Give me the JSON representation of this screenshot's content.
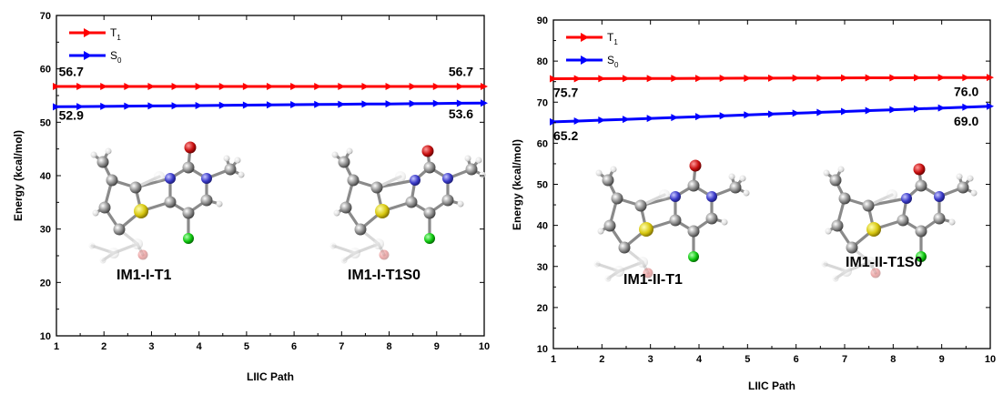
{
  "chart_data": [
    {
      "type": "line",
      "xlabel": "LIIC Path",
      "ylabel": "Energy (kcal/mol)",
      "xlim": [
        1,
        10
      ],
      "ylim": [
        10,
        70
      ],
      "x_ticks": [
        "1",
        "2",
        "3",
        "4",
        "5",
        "6",
        "7",
        "8",
        "9",
        "10"
      ],
      "y_ticks": [
        "10",
        "20",
        "30",
        "40",
        "50",
        "60",
        "70"
      ],
      "legend": {
        "position": "top-left",
        "entries": [
          {
            "main": "T",
            "sub": "1",
            "color": "#ff0000"
          },
          {
            "main": "S",
            "sub": "0",
            "color": "#0000ff"
          }
        ]
      },
      "series": [
        {
          "color": "#ff0000",
          "x": [
            1,
            1.5,
            2,
            2.5,
            3,
            3.5,
            4,
            4.5,
            5,
            5.5,
            6,
            6.5,
            7,
            7.5,
            8,
            8.5,
            9,
            9.5,
            10
          ],
          "values": [
            56.7,
            56.7,
            56.7,
            56.7,
            56.7,
            56.7,
            56.7,
            56.7,
            56.7,
            56.7,
            56.7,
            56.7,
            56.7,
            56.7,
            56.7,
            56.7,
            56.7,
            56.7,
            56.7
          ]
        },
        {
          "color": "#0000ff",
          "x": [
            1,
            1.5,
            2,
            2.5,
            3,
            3.5,
            4,
            4.5,
            5,
            5.5,
            6,
            6.5,
            7,
            7.5,
            8,
            8.5,
            9,
            9.5,
            10
          ],
          "values": [
            52.9,
            52.94,
            52.98,
            53.02,
            53.06,
            53.09,
            53.13,
            53.17,
            53.21,
            53.25,
            53.29,
            53.33,
            53.37,
            53.41,
            53.44,
            53.48,
            53.52,
            53.56,
            53.6
          ]
        }
      ],
      "annotations": [
        {
          "text": "56.7",
          "x": 1.05,
          "y": 58.7
        },
        {
          "text": "52.9",
          "x": 1.05,
          "y": 50.5
        },
        {
          "text": "56.7",
          "x": 9.25,
          "y": 58.7
        },
        {
          "text": "53.6",
          "x": 9.25,
          "y": 50.7
        }
      ],
      "structure_labels": [
        "IM1-I-T1",
        "IM1-I-T1S0"
      ]
    },
    {
      "type": "line",
      "xlabel": "LIIC Path",
      "ylabel": "Energy (kcal/mol)",
      "xlim": [
        1,
        10
      ],
      "ylim": [
        10,
        90
      ],
      "x_ticks": [
        "1",
        "2",
        "3",
        "4",
        "5",
        "6",
        "7",
        "8",
        "9",
        "10"
      ],
      "y_ticks": [
        "10",
        "20",
        "30",
        "40",
        "50",
        "60",
        "70",
        "80",
        "90"
      ],
      "legend": {
        "position": "top-left",
        "entries": [
          {
            "main": "T",
            "sub": "1",
            "color": "#ff0000"
          },
          {
            "main": "S",
            "sub": "0",
            "color": "#0000ff"
          }
        ]
      },
      "series": [
        {
          "color": "#ff0000",
          "x": [
            1,
            1.5,
            2,
            2.5,
            3,
            3.5,
            4,
            4.5,
            5,
            5.5,
            6,
            6.5,
            7,
            7.5,
            8,
            8.5,
            9,
            9.5,
            10
          ],
          "values": [
            75.7,
            75.72,
            75.73,
            75.75,
            75.77,
            75.78,
            75.8,
            75.82,
            75.83,
            75.85,
            75.87,
            75.88,
            75.9,
            75.92,
            75.93,
            75.95,
            75.97,
            75.98,
            76.0
          ]
        },
        {
          "color": "#0000ff",
          "x": [
            1,
            1.5,
            2,
            2.5,
            3,
            3.5,
            4,
            4.5,
            5,
            5.5,
            6,
            6.5,
            7,
            7.5,
            8,
            8.5,
            9,
            9.5,
            10
          ],
          "values": [
            65.2,
            65.41,
            65.62,
            65.83,
            66.04,
            66.26,
            66.47,
            66.68,
            66.89,
            67.1,
            67.31,
            67.52,
            67.73,
            67.94,
            68.16,
            68.37,
            68.58,
            68.79,
            69.0
          ]
        }
      ],
      "annotations": [
        {
          "text": "75.7",
          "x": 1.0,
          "y": 71.3
        },
        {
          "text": "65.2",
          "x": 1.0,
          "y": 60.8
        },
        {
          "text": "76.0",
          "x": 9.25,
          "y": 71.5
        },
        {
          "text": "69.0",
          "x": 9.25,
          "y": 64.3
        }
      ],
      "structure_labels": [
        "IM1-II-T1",
        "IM1-II-T1S0"
      ]
    }
  ]
}
